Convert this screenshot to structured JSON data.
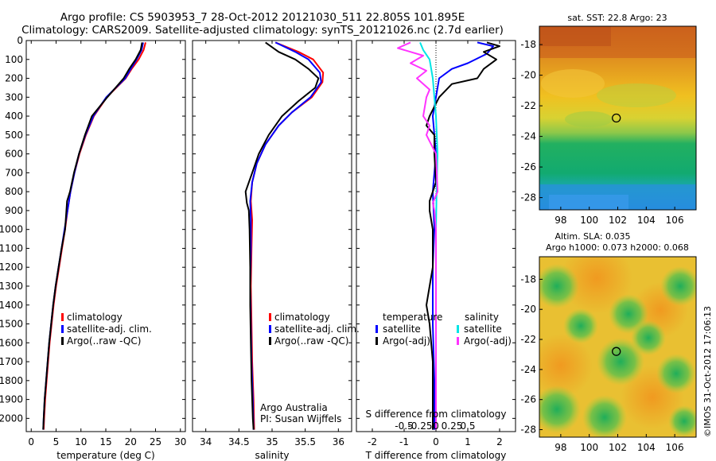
{
  "header": {
    "title_line1": "Argo profile: CS 5903953_7 28-Oct-2012 20121030_511 22.805S 101.895E",
    "title_line2": "Climatology: CARS2009. Satellite-adjusted climatology: synTS_20121026.nc (2.7d earlier)"
  },
  "colors": {
    "climatology": "#ff0000",
    "satellite": "#0000ff",
    "argo": "#000000",
    "salinity_satellite": "#00e5e5",
    "salinity_argo": "#ff33ff"
  },
  "chart_data": [
    {
      "id": "temperature",
      "type": "line",
      "xlabel": "temperature (deg C)",
      "ylabel": "",
      "xlim": [
        -1,
        31
      ],
      "ylim": [
        2070,
        0
      ],
      "xticks": [
        0,
        5,
        10,
        15,
        20,
        25,
        30
      ],
      "yticks": [
        0,
        100,
        200,
        300,
        400,
        500,
        600,
        700,
        800,
        900,
        1000,
        1100,
        1200,
        1300,
        1400,
        1500,
        1600,
        1700,
        1800,
        1900,
        2000
      ],
      "legend": [
        "climatology",
        "satellite-adj. clim.",
        "Argo(..raw -QC)"
      ],
      "series": [
        {
          "name": "climatology",
          "color": "#ff0000",
          "points": [
            [
              23.0,
              10
            ],
            [
              22.6,
              50
            ],
            [
              21.6,
              100
            ],
            [
              20.2,
              150
            ],
            [
              19.0,
              200
            ],
            [
              15.2,
              300
            ],
            [
              12.6,
              400
            ],
            [
              11.0,
              500
            ],
            [
              9.7,
              600
            ],
            [
              8.7,
              700
            ],
            [
              7.9,
              800
            ],
            [
              7.3,
              900
            ],
            [
              6.8,
              1000
            ],
            [
              6.2,
              1100
            ],
            [
              5.6,
              1200
            ],
            [
              5.0,
              1300
            ],
            [
              4.5,
              1400
            ],
            [
              4.1,
              1500
            ],
            [
              3.7,
              1600
            ],
            [
              3.4,
              1700
            ],
            [
              3.1,
              1800
            ],
            [
              2.8,
              1900
            ],
            [
              2.6,
              2000
            ],
            [
              2.5,
              2060
            ]
          ]
        },
        {
          "name": "satellite-adj. clim.",
          "color": "#0000ff",
          "points": [
            [
              22.5,
              10
            ],
            [
              22.2,
              50
            ],
            [
              21.2,
              100
            ],
            [
              20.0,
              150
            ],
            [
              18.9,
              200
            ],
            [
              15.1,
              300
            ],
            [
              12.5,
              400
            ],
            [
              10.9,
              500
            ],
            [
              9.6,
              600
            ],
            [
              8.7,
              700
            ],
            [
              7.9,
              800
            ],
            [
              7.3,
              900
            ],
            [
              6.7,
              1000
            ],
            [
              6.1,
              1100
            ],
            [
              5.5,
              1200
            ],
            [
              4.9,
              1300
            ],
            [
              4.4,
              1400
            ],
            [
              4.0,
              1500
            ],
            [
              3.6,
              1600
            ],
            [
              3.3,
              1700
            ],
            [
              3.0,
              1800
            ],
            [
              2.7,
              1900
            ],
            [
              2.5,
              2000
            ],
            [
              2.4,
              2060
            ]
          ]
        },
        {
          "name": "Argo(..raw -QC)",
          "color": "#000000",
          "points": [
            [
              22.3,
              10
            ],
            [
              22.0,
              50
            ],
            [
              21.0,
              100
            ],
            [
              19.7,
              150
            ],
            [
              18.6,
              200
            ],
            [
              15.3,
              300
            ],
            [
              12.2,
              400
            ],
            [
              10.8,
              500
            ],
            [
              9.6,
              600
            ],
            [
              8.6,
              700
            ],
            [
              7.8,
              800
            ],
            [
              7.2,
              850
            ],
            [
              6.8,
              1000
            ],
            [
              6.1,
              1100
            ],
            [
              5.5,
              1200
            ],
            [
              4.9,
              1300
            ],
            [
              4.4,
              1400
            ],
            [
              4.0,
              1500
            ],
            [
              3.6,
              1600
            ],
            [
              3.3,
              1700
            ],
            [
              3.0,
              1800
            ],
            [
              2.7,
              1900
            ],
            [
              2.5,
              2000
            ],
            [
              2.4,
              2060
            ]
          ]
        }
      ]
    },
    {
      "id": "salinity",
      "type": "line",
      "xlabel": "salinity",
      "xlim": [
        33.8,
        36.2
      ],
      "ylim": [
        2070,
        0
      ],
      "xticks": [
        34,
        34.5,
        35,
        35.5,
        36
      ],
      "legend": [
        "climatology",
        "satellite-adj. clim.",
        "Argo(..raw -QC)"
      ],
      "annotation_line1": "Argo Australia",
      "annotation_line2": "PI: Susan Wijffels",
      "series": [
        {
          "name": "climatology",
          "color": "#ff0000",
          "points": [
            [
              35.05,
              10
            ],
            [
              35.4,
              60
            ],
            [
              35.62,
              100
            ],
            [
              35.77,
              170
            ],
            [
              35.76,
              220
            ],
            [
              35.6,
              300
            ],
            [
              35.3,
              380
            ],
            [
              35.1,
              450
            ],
            [
              34.9,
              550
            ],
            [
              34.77,
              650
            ],
            [
              34.7,
              750
            ],
            [
              34.68,
              850
            ],
            [
              34.7,
              950
            ],
            [
              34.69,
              1100
            ],
            [
              34.68,
              1300
            ],
            [
              34.69,
              1500
            ],
            [
              34.7,
              1700
            ],
            [
              34.72,
              1900
            ],
            [
              34.73,
              2060
            ]
          ]
        },
        {
          "name": "satellite-adj. clim.",
          "color": "#0000ff",
          "points": [
            [
              35.05,
              10
            ],
            [
              35.35,
              60
            ],
            [
              35.55,
              100
            ],
            [
              35.72,
              170
            ],
            [
              35.74,
              220
            ],
            [
              35.58,
              300
            ],
            [
              35.3,
              380
            ],
            [
              35.1,
              450
            ],
            [
              34.9,
              550
            ],
            [
              34.77,
              650
            ],
            [
              34.7,
              750
            ],
            [
              34.67,
              850
            ],
            [
              34.68,
              950
            ],
            [
              34.68,
              1100
            ],
            [
              34.67,
              1300
            ],
            [
              34.68,
              1500
            ],
            [
              34.69,
              1700
            ],
            [
              34.71,
              1900
            ],
            [
              34.72,
              2060
            ]
          ]
        },
        {
          "name": "Argo(..raw -QC)",
          "color": "#000000",
          "points": [
            [
              34.9,
              10
            ],
            [
              35.1,
              60
            ],
            [
              35.35,
              100
            ],
            [
              35.55,
              150
            ],
            [
              35.7,
              200
            ],
            [
              35.65,
              250
            ],
            [
              35.4,
              320
            ],
            [
              35.15,
              400
            ],
            [
              34.95,
              500
            ],
            [
              34.8,
              600
            ],
            [
              34.7,
              700
            ],
            [
              34.6,
              800
            ],
            [
              34.62,
              860
            ],
            [
              34.65,
              900
            ],
            [
              34.66,
              1000
            ],
            [
              34.67,
              1200
            ],
            [
              34.67,
              1400
            ],
            [
              34.68,
              1600
            ],
            [
              34.69,
              1800
            ],
            [
              34.71,
              2000
            ],
            [
              34.72,
              2060
            ]
          ]
        }
      ]
    },
    {
      "id": "differences",
      "type": "line",
      "xlabel": "T difference from climatology",
      "xlabel2": "S difference from climatology",
      "xlim": [
        -2.5,
        2.5
      ],
      "ylim": [
        2070,
        0
      ],
      "xticks": [
        "-2",
        "-1",
        "0",
        "1",
        "2"
      ],
      "xtick_values": [
        -2,
        -1,
        0,
        1,
        2
      ],
      "xticks_top": [
        "-0.5",
        "-0.25",
        "0",
        "0.25",
        "0.5"
      ],
      "xticks_top_values": [
        -1,
        -0.5,
        0,
        0.5,
        1
      ],
      "legend_temperature_title": "temperature",
      "legend_salinity_title": "salinity",
      "legend_temperature": [
        "satellite",
        "Argo(-adj)"
      ],
      "legend_salinity": [
        "satellite",
        "Argo(-adj)"
      ],
      "series": [
        {
          "name": "temperature satellite",
          "color": "#0000ff",
          "points": [
            [
              1.3,
              10
            ],
            [
              1.8,
              30
            ],
            [
              1.6,
              70
            ],
            [
              1.0,
              120
            ],
            [
              0.5,
              150
            ],
            [
              0.1,
              200
            ],
            [
              0.0,
              300
            ],
            [
              -0.1,
              400
            ],
            [
              -0.05,
              500
            ],
            [
              0.0,
              600
            ],
            [
              -0.1,
              800
            ],
            [
              -0.05,
              1000
            ],
            [
              -0.1,
              1200
            ],
            [
              -0.1,
              1500
            ],
            [
              -0.05,
              1800
            ],
            [
              -0.05,
              2060
            ]
          ]
        },
        {
          "name": "temperature Argo(-adj)",
          "color": "#000000",
          "points": [
            [
              1.6,
              10
            ],
            [
              2.0,
              30
            ],
            [
              1.5,
              60
            ],
            [
              1.9,
              100
            ],
            [
              1.5,
              150
            ],
            [
              1.3,
              200
            ],
            [
              0.5,
              230
            ],
            [
              0.1,
              300
            ],
            [
              -0.2,
              400
            ],
            [
              -0.3,
              450
            ],
            [
              -0.05,
              500
            ],
            [
              -0.05,
              600
            ],
            [
              0.0,
              750
            ],
            [
              -0.2,
              850
            ],
            [
              -0.2,
              900
            ],
            [
              -0.1,
              1000
            ],
            [
              -0.1,
              1200
            ],
            [
              -0.3,
              1400
            ],
            [
              -0.2,
              1500
            ],
            [
              -0.1,
              1700
            ],
            [
              -0.1,
              1900
            ],
            [
              -0.1,
              2060
            ]
          ]
        },
        {
          "name": "salinity satellite",
          "color": "#00e5e5",
          "points": [
            [
              -0.5,
              10
            ],
            [
              -0.4,
              50
            ],
            [
              -0.2,
              100
            ],
            [
              -0.1,
              200
            ],
            [
              -0.05,
              300
            ],
            [
              0.0,
              400
            ],
            [
              0.05,
              600
            ],
            [
              0.02,
              800
            ],
            [
              0.0,
              1000
            ],
            [
              0.0,
              1400
            ],
            [
              0.0,
              1800
            ],
            [
              0.0,
              2060
            ]
          ]
        },
        {
          "name": "salinity Argo(-adj)",
          "color": "#ff33ff",
          "points": [
            [
              -0.8,
              10
            ],
            [
              -1.2,
              40
            ],
            [
              -0.4,
              80
            ],
            [
              -0.8,
              120
            ],
            [
              -0.3,
              160
            ],
            [
              -0.6,
              200
            ],
            [
              -0.2,
              260
            ],
            [
              -0.3,
              300
            ],
            [
              -0.4,
              400
            ],
            [
              -0.2,
              450
            ],
            [
              -0.3,
              500
            ],
            [
              0.0,
              600
            ],
            [
              0.05,
              800
            ],
            [
              -0.1,
              860
            ],
            [
              -0.05,
              900
            ],
            [
              0.0,
              1000
            ],
            [
              0.0,
              1300
            ],
            [
              0.0,
              1700
            ],
            [
              0.0,
              2060
            ]
          ]
        }
      ]
    },
    {
      "id": "sst_map",
      "type": "heatmap",
      "title": "sat. SST: 22.8 Argo: 23",
      "xticks": [
        "98",
        "100",
        "102",
        "104",
        "106"
      ],
      "xtick_values": [
        98,
        100,
        102,
        104,
        106
      ],
      "yticks": [
        "-18",
        "-20",
        "-22",
        "-24",
        "-26",
        "-28"
      ],
      "ytick_values": [
        -18,
        -20,
        -22,
        -24,
        -26,
        -28
      ],
      "xlim": [
        96.5,
        107.5
      ],
      "ylim": [
        -28.8,
        -16.8
      ],
      "marker": [
        101.9,
        -22.8
      ]
    },
    {
      "id": "sla_map",
      "type": "heatmap",
      "title_line1": "Altim. SLA: 0.035",
      "title_line2": "Argo h1000: 0.073 h2000: 0.068",
      "xticks": [
        "98",
        "100",
        "102",
        "104",
        "106"
      ],
      "xtick_values": [
        98,
        100,
        102,
        104,
        106
      ],
      "yticks": [
        "-18",
        "-20",
        "-22",
        "-24",
        "-26",
        "-28"
      ],
      "ytick_values": [
        -18,
        -20,
        -22,
        -24,
        -26,
        -28
      ],
      "xlim": [
        96.5,
        107.5
      ],
      "ylim": [
        -28.5,
        -16.5
      ],
      "marker": [
        101.9,
        -22.8
      ]
    }
  ],
  "footer": {
    "stamp": "©IMOS 31-Oct-2012 17:06:13"
  }
}
